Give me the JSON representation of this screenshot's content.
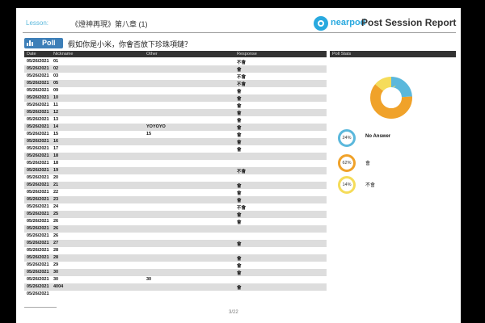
{
  "header": {
    "lesson_label": "Lesson:",
    "lesson_title": "《燈神再現》第八章 (1)",
    "brand": "nearpod",
    "report_title": "Post Session Report"
  },
  "poll": {
    "badge": "Poll",
    "question": "假如你是小米，你會否放下珍珠項鏈？"
  },
  "table": {
    "columns": [
      "Date",
      "Nickname",
      "Other",
      "Response"
    ],
    "rows": [
      {
        "date": "05/26/2021",
        "nick": "01",
        "other": "",
        "resp": "不會"
      },
      {
        "date": "05/26/2021",
        "nick": "02",
        "other": "",
        "resp": "會"
      },
      {
        "date": "05/26/2021",
        "nick": "03",
        "other": "",
        "resp": "不會"
      },
      {
        "date": "05/26/2021",
        "nick": "05",
        "other": "",
        "resp": "不會"
      },
      {
        "date": "05/26/2021",
        "nick": "09",
        "other": "",
        "resp": "會"
      },
      {
        "date": "05/26/2021",
        "nick": "10",
        "other": "",
        "resp": "會"
      },
      {
        "date": "05/26/2021",
        "nick": "11",
        "other": "",
        "resp": "會"
      },
      {
        "date": "05/26/2021",
        "nick": "12",
        "other": "",
        "resp": "會"
      },
      {
        "date": "05/26/2021",
        "nick": "13",
        "other": "",
        "resp": "會"
      },
      {
        "date": "05/26/2021",
        "nick": "14",
        "other": "YOYOYO",
        "resp": "會"
      },
      {
        "date": "05/26/2021",
        "nick": "15",
        "other": "15",
        "resp": "會"
      },
      {
        "date": "05/26/2021",
        "nick": "16",
        "other": "",
        "resp": "會"
      },
      {
        "date": "05/26/2021",
        "nick": "17",
        "other": "",
        "resp": "會"
      },
      {
        "date": "05/26/2021",
        "nick": "18",
        "other": "",
        "resp": ""
      },
      {
        "date": "05/26/2021",
        "nick": "18",
        "other": "",
        "resp": ""
      },
      {
        "date": "05/26/2021",
        "nick": "19",
        "other": "",
        "resp": "不會"
      },
      {
        "date": "05/26/2021",
        "nick": "20",
        "other": "",
        "resp": ""
      },
      {
        "date": "05/26/2021",
        "nick": "21",
        "other": "",
        "resp": "會"
      },
      {
        "date": "05/26/2021",
        "nick": "22",
        "other": "",
        "resp": "會"
      },
      {
        "date": "05/26/2021",
        "nick": "23",
        "other": "",
        "resp": "會"
      },
      {
        "date": "05/26/2021",
        "nick": "24",
        "other": "",
        "resp": "不會"
      },
      {
        "date": "05/26/2021",
        "nick": "25",
        "other": "",
        "resp": "會"
      },
      {
        "date": "05/26/2021",
        "nick": "26",
        "other": "",
        "resp": "會"
      },
      {
        "date": "05/26/2021",
        "nick": "26",
        "other": "",
        "resp": ""
      },
      {
        "date": "05/26/2021",
        "nick": "26",
        "other": "",
        "resp": ""
      },
      {
        "date": "05/26/2021",
        "nick": "27",
        "other": "",
        "resp": "會"
      },
      {
        "date": "05/26/2021",
        "nick": "28",
        "other": "",
        "resp": ""
      },
      {
        "date": "05/26/2021",
        "nick": "28",
        "other": "",
        "resp": "會"
      },
      {
        "date": "05/26/2021",
        "nick": "29",
        "other": "",
        "resp": "會"
      },
      {
        "date": "05/26/2021",
        "nick": "30",
        "other": "",
        "resp": "會"
      },
      {
        "date": "05/26/2021",
        "nick": "30",
        "other": "30",
        "resp": ""
      },
      {
        "date": "05/26/2021",
        "nick": "4004",
        "other": "",
        "resp": "會"
      },
      {
        "date": "05/26/2021",
        "nick": "",
        "other": "",
        "resp": ""
      }
    ]
  },
  "stats": {
    "title": "Poll Stats",
    "slices": [
      {
        "label": "No Answer",
        "percent": "24%",
        "value": 24,
        "color": "#5bb8dc"
      },
      {
        "label": "會",
        "percent": "62%",
        "value": 62,
        "color": "#f0a22a"
      },
      {
        "label": "不會",
        "percent": "14%",
        "value": 14,
        "color": "#f5dc5a"
      }
    ]
  },
  "footer": {
    "page": "3/22"
  }
}
